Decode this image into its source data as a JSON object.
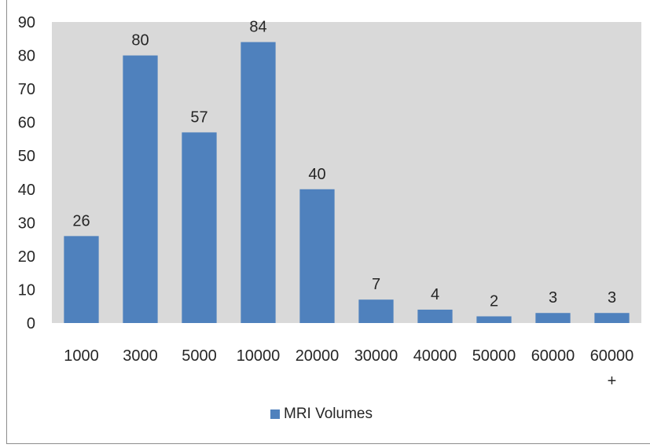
{
  "chart_data": {
    "type": "bar",
    "categories": [
      "1000",
      "3000",
      "5000",
      "10000",
      "20000",
      "30000",
      "40000",
      "50000",
      "60000",
      [
        "60000",
        "+"
      ]
    ],
    "series": [
      {
        "name": "MRI Volumes",
        "values": [
          26,
          80,
          57,
          84,
          40,
          7,
          4,
          2,
          3,
          3
        ]
      }
    ],
    "ylim": [
      0,
      90
    ],
    "yticks": [
      0,
      10,
      20,
      30,
      40,
      50,
      60,
      70,
      80,
      90
    ],
    "title": "",
    "xlabel": "",
    "ylabel": "",
    "grid": false,
    "legend_position": "bottom",
    "data_labels": true,
    "colors": {
      "bar": "#4f81bd",
      "plot_area": "#d9d9d9",
      "frame_border": "#8c8c8c",
      "text": "#262626"
    }
  }
}
